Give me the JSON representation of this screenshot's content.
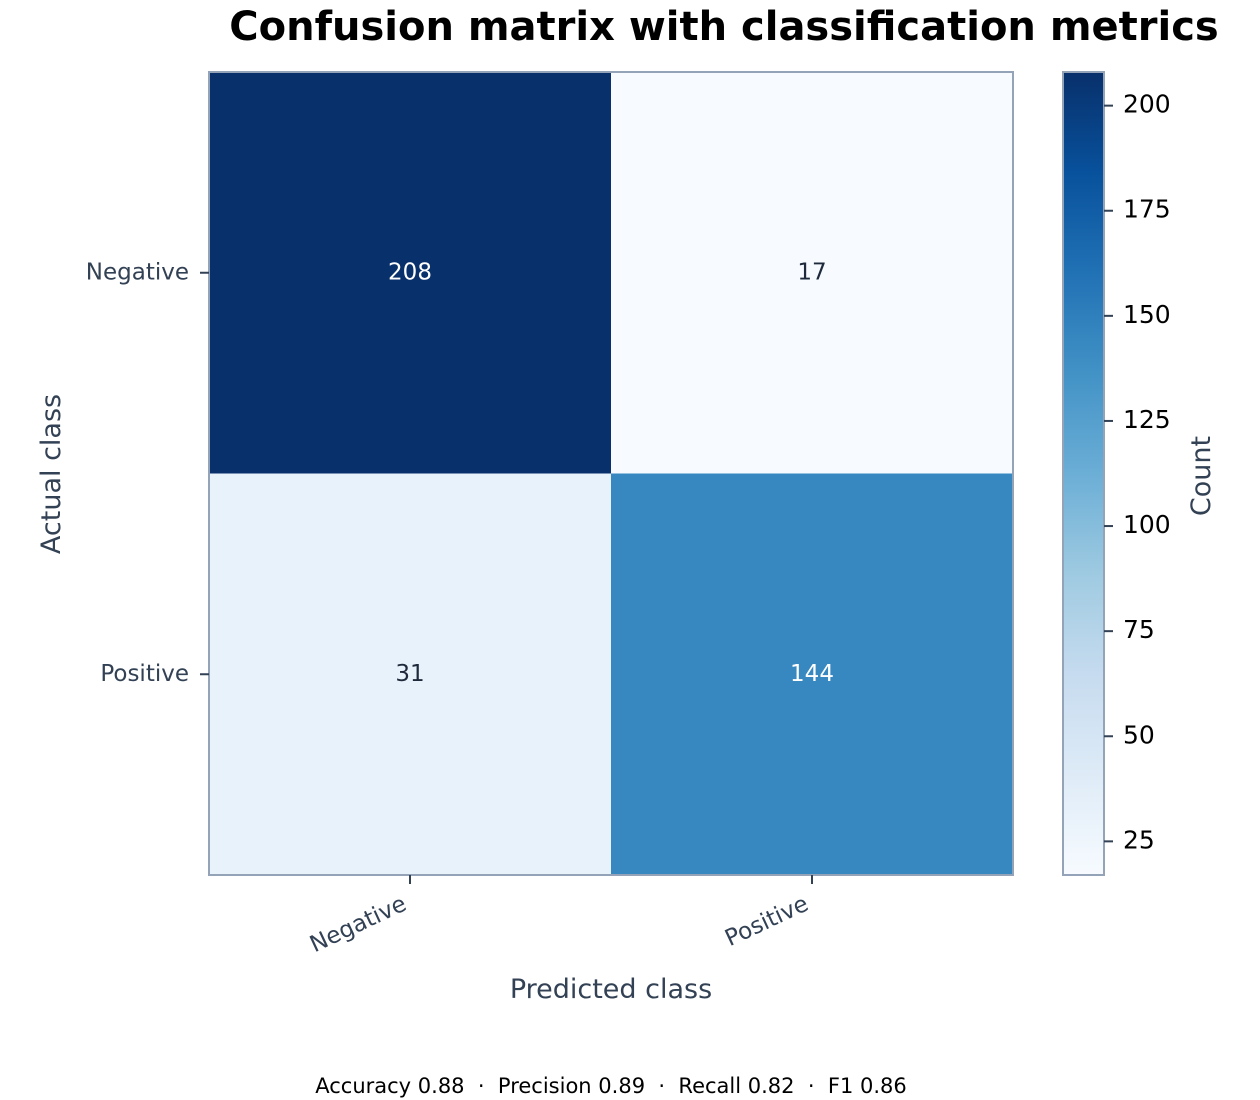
{
  "chart_data": {
    "type": "heatmap",
    "title": "Confusion matrix with classification metrics",
    "xlabel": "Predicted class",
    "ylabel": "Actual class",
    "x_categories": [
      "Negative",
      "Positive"
    ],
    "y_categories": [
      "Negative",
      "Positive"
    ],
    "values": [
      [
        208,
        17
      ],
      [
        31,
        144
      ]
    ],
    "colorbar": {
      "label": "Count",
      "range": [
        17,
        208
      ],
      "ticks": [
        25,
        50,
        75,
        100,
        125,
        150,
        175,
        200
      ],
      "colormap": "Blues"
    },
    "footer": "Accuracy 0.88  ·  Precision 0.89  ·  Recall 0.82  ·  F1 0.86"
  }
}
